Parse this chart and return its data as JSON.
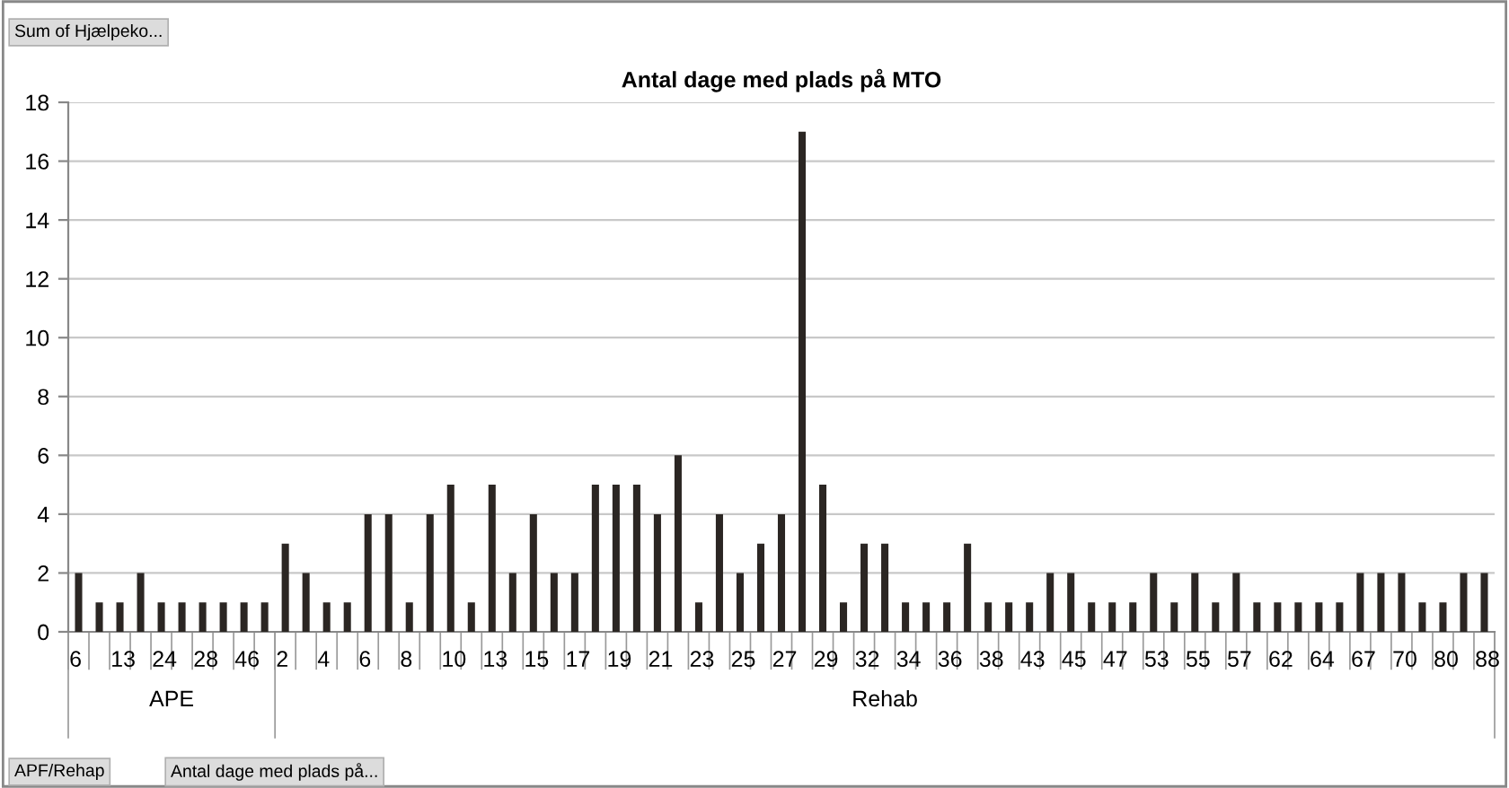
{
  "chart_data": {
    "type": "bar",
    "title": "Antal dage med plads på MTO",
    "categories": [
      "6",
      null,
      "13",
      null,
      "24",
      null,
      "28",
      null,
      "46",
      null,
      "2",
      null,
      "4",
      null,
      "6",
      null,
      "8",
      null,
      "10",
      null,
      "13",
      null,
      "15",
      null,
      "17",
      null,
      "19",
      null,
      "21",
      null,
      "23",
      null,
      "25",
      null,
      "27",
      null,
      "29",
      null,
      "32",
      null,
      "34",
      null,
      "36",
      null,
      "38",
      null,
      "43",
      null,
      "45",
      null,
      "47",
      null,
      "53",
      null,
      "55",
      null,
      "57",
      null,
      "62",
      null,
      "64",
      null,
      "67",
      null,
      "70",
      null,
      "80",
      null,
      "88"
    ],
    "values": [
      2,
      1,
      1,
      2,
      1,
      1,
      1,
      1,
      1,
      1,
      3,
      2,
      1,
      1,
      4,
      4,
      1,
      4,
      5,
      1,
      5,
      2,
      4,
      2,
      2,
      5,
      5,
      5,
      4,
      6,
      1,
      4,
      2,
      3,
      4,
      17,
      5,
      1,
      3,
      3,
      1,
      1,
      1,
      3,
      1,
      1,
      1,
      2,
      2,
      1,
      1,
      1,
      2,
      1,
      2,
      1,
      2,
      1,
      1,
      1,
      1,
      1,
      2,
      2,
      2,
      1,
      1,
      2,
      2
    ],
    "color": "#2b2623",
    "ylim": [
      0,
      18
    ],
    "yticks": [
      0,
      2,
      4,
      6,
      8,
      10,
      12,
      14,
      16,
      18
    ],
    "grid": "y",
    "legend": false,
    "annotations": [
      "APE",
      "Rehab",
      "Sum of Hjælpeko...",
      "APF/Rehap",
      "Antal dage med plads på..."
    ]
  }
}
